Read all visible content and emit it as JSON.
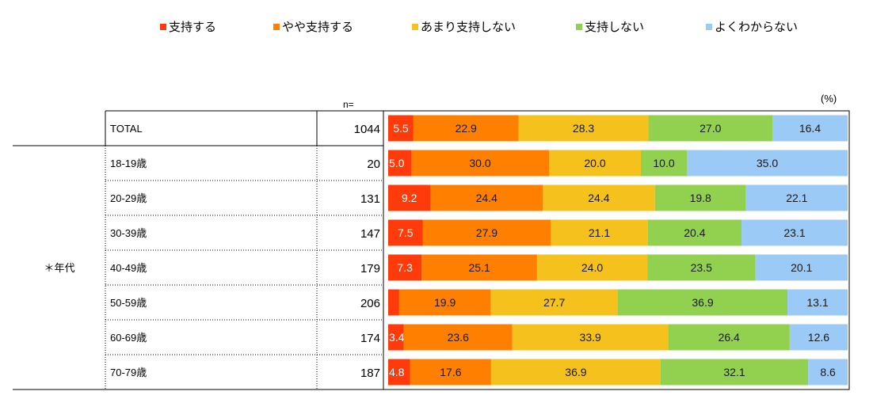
{
  "legend": [
    {
      "label": "支持する",
      "color": "#ff3b0b"
    },
    {
      "label": "やや支持する",
      "color": "#ff8000"
    },
    {
      "label": "あまり支持しない",
      "color": "#f5c11c"
    },
    {
      "label": "支持しない",
      "color": "#92d050"
    },
    {
      "label": "よくわからない",
      "color": "#9ccaf7"
    }
  ],
  "unit_label": "(%)",
  "n_header": "n=",
  "group_label": "＊年代",
  "chart_data": {
    "type": "bar",
    "orientation": "horizontal",
    "stacked": true,
    "percent": true,
    "categories": [
      "TOTAL",
      "18-19歳",
      "20-29歳",
      "30-39歳",
      "40-49歳",
      "50-59歳",
      "60-69歳",
      "70-79歳"
    ],
    "n": [
      1044,
      20,
      131,
      147,
      179,
      206,
      174,
      187
    ],
    "series": [
      {
        "name": "支持する",
        "values": [
          5.5,
          5.0,
          9.2,
          7.5,
          7.3,
          2.4,
          3.4,
          4.8
        ],
        "labels": [
          "5.5",
          "5.0",
          "9.2",
          "7.5",
          "7.3",
          "",
          "3.4",
          "4.8"
        ]
      },
      {
        "name": "やや支持する",
        "values": [
          22.9,
          30.0,
          24.4,
          27.9,
          25.1,
          19.9,
          23.6,
          17.6
        ],
        "labels": [
          "22.9",
          "30.0",
          "24.4",
          "27.9",
          "25.1",
          "19.9",
          "23.6",
          "17.6"
        ]
      },
      {
        "name": "あまり支持しない",
        "values": [
          28.3,
          20.0,
          24.4,
          21.1,
          24.0,
          27.7,
          33.9,
          36.9
        ],
        "labels": [
          "28.3",
          "20.0",
          "24.4",
          "21.1",
          "24.0",
          "27.7",
          "33.9",
          "36.9"
        ]
      },
      {
        "name": "支持しない",
        "values": [
          27.0,
          10.0,
          19.8,
          20.4,
          23.5,
          36.9,
          26.4,
          32.1
        ],
        "labels": [
          "27.0",
          "10.0",
          "19.8",
          "20.4",
          "23.5",
          "36.9",
          "26.4",
          "32.1"
        ]
      },
      {
        "name": "よくわからない",
        "values": [
          16.4,
          35.0,
          22.1,
          23.1,
          20.1,
          13.1,
          12.6,
          8.6
        ],
        "labels": [
          "16.4",
          "35.0",
          "22.1",
          "23.1",
          "20.1",
          "13.1",
          "12.6",
          "8.6"
        ]
      }
    ],
    "xlim": [
      0,
      100
    ],
    "legend_position": "top"
  }
}
